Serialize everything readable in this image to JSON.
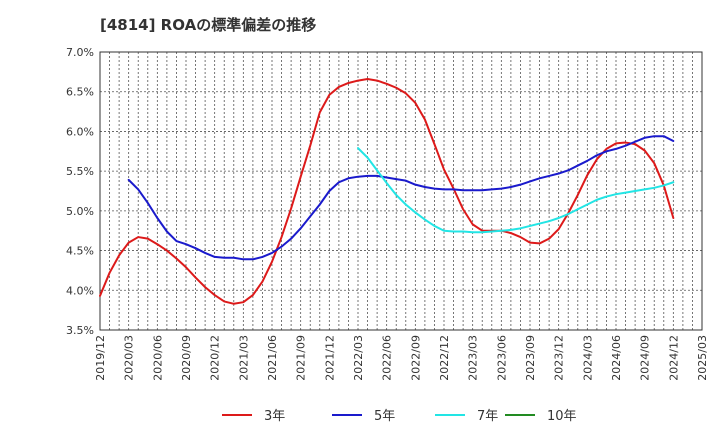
{
  "chart_data": {
    "type": "line",
    "title": "[4814]  ROAの標準偏差の推移",
    "xlabel": "",
    "ylabel": "",
    "ylim": [
      3.5,
      7.0
    ],
    "yticks": [
      "3.5%",
      "4.0%",
      "4.5%",
      "5.0%",
      "5.5%",
      "6.0%",
      "6.5%",
      "7.0%"
    ],
    "xticks": [
      "2019/12",
      "2020/03",
      "2020/06",
      "2020/09",
      "2020/12",
      "2021/03",
      "2021/06",
      "2021/09",
      "2021/12",
      "2022/03",
      "2022/06",
      "2022/09",
      "2022/12",
      "2023/03",
      "2023/06",
      "2023/09",
      "2023/12",
      "2024/03",
      "2024/06",
      "2024/09",
      "2024/12",
      "2025/03"
    ],
    "grid": true,
    "legend_position": "bottom",
    "series": [
      {
        "name": "3年",
        "color": "#dd1a1a",
        "points": [
          [
            "2019/12",
            3.93
          ],
          [
            "2020/01",
            4.22
          ],
          [
            "2020/02",
            4.44
          ],
          [
            "2020/03",
            4.6
          ],
          [
            "2020/04",
            4.67
          ],
          [
            "2020/05",
            4.65
          ],
          [
            "2020/06",
            4.58
          ],
          [
            "2020/07",
            4.5
          ],
          [
            "2020/08",
            4.4
          ],
          [
            "2020/09",
            4.29
          ],
          [
            "2020/10",
            4.16
          ],
          [
            "2020/11",
            4.04
          ],
          [
            "2020/12",
            3.94
          ],
          [
            "2021/01",
            3.86
          ],
          [
            "2021/02",
            3.83
          ],
          [
            "2021/03",
            3.85
          ],
          [
            "2021/04",
            3.94
          ],
          [
            "2021/05",
            4.11
          ],
          [
            "2021/06",
            4.36
          ],
          [
            "2021/07",
            4.67
          ],
          [
            "2021/08",
            5.03
          ],
          [
            "2021/09",
            5.43
          ],
          [
            "2021/10",
            5.82
          ],
          [
            "2021/11",
            6.24
          ],
          [
            "2021/12",
            6.46
          ],
          [
            "2022/01",
            6.56
          ],
          [
            "2022/02",
            6.61
          ],
          [
            "2022/03",
            6.64
          ],
          [
            "2022/04",
            6.66
          ],
          [
            "2022/05",
            6.64
          ],
          [
            "2022/06",
            6.6
          ],
          [
            "2022/07",
            6.55
          ],
          [
            "2022/08",
            6.48
          ],
          [
            "2022/09",
            6.36
          ],
          [
            "2022/10",
            6.15
          ],
          [
            "2022/11",
            5.84
          ],
          [
            "2022/12",
            5.52
          ],
          [
            "2023/01",
            5.28
          ],
          [
            "2023/02",
            5.02
          ],
          [
            "2023/03",
            4.83
          ],
          [
            "2023/04",
            4.75
          ],
          [
            "2023/05",
            4.75
          ],
          [
            "2023/06",
            4.75
          ],
          [
            "2023/07",
            4.72
          ],
          [
            "2023/08",
            4.67
          ],
          [
            "2023/09",
            4.6
          ],
          [
            "2023/10",
            4.59
          ],
          [
            "2023/11",
            4.65
          ],
          [
            "2023/12",
            4.77
          ],
          [
            "2024/01",
            4.97
          ],
          [
            "2024/02",
            5.2
          ],
          [
            "2024/03",
            5.45
          ],
          [
            "2024/04",
            5.65
          ],
          [
            "2024/05",
            5.78
          ],
          [
            "2024/06",
            5.85
          ],
          [
            "2024/07",
            5.86
          ],
          [
            "2024/08",
            5.84
          ],
          [
            "2024/09",
            5.76
          ],
          [
            "2024/10",
            5.6
          ],
          [
            "2024/11",
            5.32
          ],
          [
            "2024/12",
            4.91
          ]
        ]
      },
      {
        "name": "5年",
        "color": "#1a1acc",
        "points": [
          [
            "2020/03",
            5.39
          ],
          [
            "2020/04",
            5.27
          ],
          [
            "2020/05",
            5.1
          ],
          [
            "2020/06",
            4.91
          ],
          [
            "2020/07",
            4.74
          ],
          [
            "2020/08",
            4.62
          ],
          [
            "2020/09",
            4.58
          ],
          [
            "2020/10",
            4.53
          ],
          [
            "2020/11",
            4.47
          ],
          [
            "2020/12",
            4.42
          ],
          [
            "2021/01",
            4.41
          ],
          [
            "2021/02",
            4.41
          ],
          [
            "2021/03",
            4.39
          ],
          [
            "2021/04",
            4.39
          ],
          [
            "2021/05",
            4.42
          ],
          [
            "2021/06",
            4.47
          ],
          [
            "2021/07",
            4.55
          ],
          [
            "2021/08",
            4.65
          ],
          [
            "2021/09",
            4.78
          ],
          [
            "2021/10",
            4.93
          ],
          [
            "2021/11",
            5.08
          ],
          [
            "2021/12",
            5.25
          ],
          [
            "2022/01",
            5.36
          ],
          [
            "2022/02",
            5.41
          ],
          [
            "2022/03",
            5.43
          ],
          [
            "2022/04",
            5.44
          ],
          [
            "2022/05",
            5.44
          ],
          [
            "2022/06",
            5.42
          ],
          [
            "2022/07",
            5.4
          ],
          [
            "2022/08",
            5.38
          ],
          [
            "2022/09",
            5.33
          ],
          [
            "2022/10",
            5.3
          ],
          [
            "2022/11",
            5.28
          ],
          [
            "2022/12",
            5.27
          ],
          [
            "2023/01",
            5.27
          ],
          [
            "2023/02",
            5.26
          ],
          [
            "2023/03",
            5.26
          ],
          [
            "2023/04",
            5.26
          ],
          [
            "2023/05",
            5.27
          ],
          [
            "2023/06",
            5.28
          ],
          [
            "2023/07",
            5.3
          ],
          [
            "2023/08",
            5.33
          ],
          [
            "2023/09",
            5.37
          ],
          [
            "2023/10",
            5.41
          ],
          [
            "2023/11",
            5.44
          ],
          [
            "2023/12",
            5.47
          ],
          [
            "2024/01",
            5.51
          ],
          [
            "2024/02",
            5.57
          ],
          [
            "2024/03",
            5.63
          ],
          [
            "2024/04",
            5.7
          ],
          [
            "2024/05",
            5.75
          ],
          [
            "2024/06",
            5.78
          ],
          [
            "2024/07",
            5.82
          ],
          [
            "2024/08",
            5.87
          ],
          [
            "2024/09",
            5.92
          ],
          [
            "2024/10",
            5.94
          ],
          [
            "2024/11",
            5.94
          ],
          [
            "2024/12",
            5.88
          ]
        ]
      },
      {
        "name": "7年",
        "color": "#22e5e5",
        "points": [
          [
            "2022/03",
            5.79
          ],
          [
            "2022/04",
            5.67
          ],
          [
            "2022/05",
            5.51
          ],
          [
            "2022/06",
            5.35
          ],
          [
            "2022/07",
            5.2
          ],
          [
            "2022/08",
            5.08
          ],
          [
            "2022/09",
            4.98
          ],
          [
            "2022/10",
            4.89
          ],
          [
            "2022/11",
            4.81
          ],
          [
            "2022/12",
            4.75
          ],
          [
            "2023/01",
            4.74
          ],
          [
            "2023/02",
            4.74
          ],
          [
            "2023/03",
            4.73
          ],
          [
            "2023/04",
            4.73
          ],
          [
            "2023/05",
            4.74
          ],
          [
            "2023/06",
            4.75
          ],
          [
            "2023/07",
            4.76
          ],
          [
            "2023/08",
            4.78
          ],
          [
            "2023/09",
            4.81
          ],
          [
            "2023/10",
            4.84
          ],
          [
            "2023/11",
            4.87
          ],
          [
            "2023/12",
            4.91
          ],
          [
            "2024/01",
            4.96
          ],
          [
            "2024/02",
            5.02
          ],
          [
            "2024/03",
            5.08
          ],
          [
            "2024/04",
            5.14
          ],
          [
            "2024/05",
            5.18
          ],
          [
            "2024/06",
            5.21
          ],
          [
            "2024/07",
            5.23
          ],
          [
            "2024/08",
            5.25
          ],
          [
            "2024/09",
            5.27
          ],
          [
            "2024/10",
            5.29
          ],
          [
            "2024/11",
            5.32
          ],
          [
            "2024/12",
            5.36
          ]
        ]
      },
      {
        "name": "10年",
        "color": "#228b22",
        "points": []
      }
    ]
  }
}
